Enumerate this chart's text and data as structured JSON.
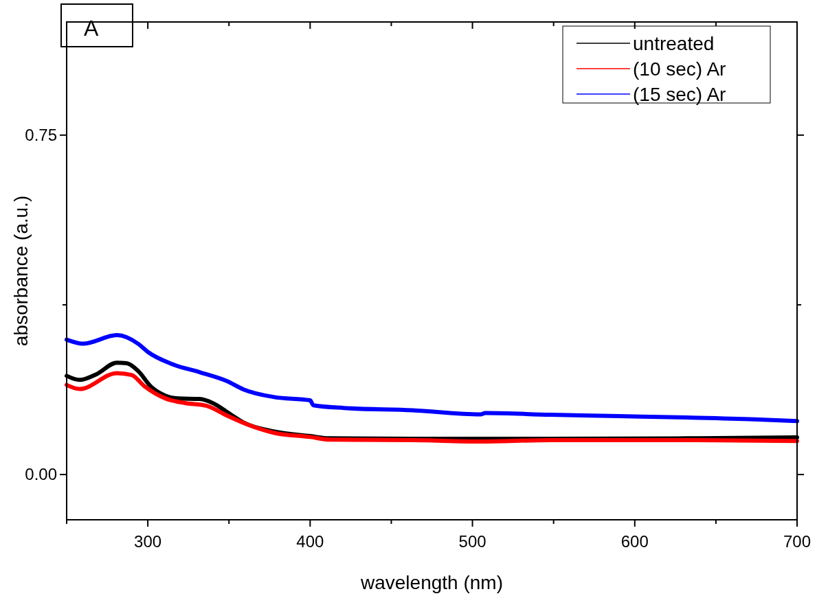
{
  "chart_data": {
    "type": "line",
    "xlabel": "wavelength (nm)",
    "ylabel": "absorbance (a.u.)",
    "annotations": [
      "A"
    ],
    "xlim": [
      250,
      700
    ],
    "xticks": [
      {
        "value": 250,
        "label": null
      },
      300,
      {
        "value": 350,
        "label": null
      },
      400,
      {
        "value": 450,
        "label": null
      },
      500,
      {
        "value": 550,
        "label": null
      },
      600,
      {
        "value": 650,
        "label": null
      },
      700
    ],
    "ylim": [
      -0.1,
      1.0
    ],
    "yticks": [
      {
        "value": 0,
        "label": "0.00"
      },
      {
        "value": 0.375,
        "label": null
      },
      {
        "value": 0.75,
        "label": "0.75"
      }
    ],
    "legend": "top right",
    "grid": false,
    "line_style": "solid",
    "series": [
      {
        "name": "untreated",
        "color": "#000000",
        "x": [
          250,
          258,
          268,
          281,
          287,
          294,
          302,
          311,
          319,
          332,
          340,
          351,
          359,
          378,
          400,
          412,
          463,
          548,
          632,
          700
        ],
        "values": [
          0.218,
          0.209,
          0.221,
          0.247,
          0.246,
          0.229,
          0.194,
          0.174,
          0.168,
          0.167,
          0.158,
          0.133,
          0.115,
          0.095,
          0.085,
          0.08,
          0.079,
          0.079,
          0.08,
          0.082
        ]
      },
      {
        "name": "(10 sec) Ar",
        "color": "#ff0000",
        "x": [
          250,
          258,
          281,
          290,
          298,
          311,
          323,
          336,
          349,
          359,
          378,
          400,
          412,
          463,
          505,
          548,
          632,
          700
        ],
        "values": [
          0.198,
          0.189,
          0.224,
          0.22,
          0.195,
          0.168,
          0.158,
          0.152,
          0.13,
          0.114,
          0.092,
          0.083,
          0.077,
          0.076,
          0.073,
          0.076,
          0.076,
          0.074
        ]
      },
      {
        "name": "(15 sec) Ar",
        "color": "#0000ff",
        "x": [
          250,
          260,
          281,
          294,
          300,
          315,
          332,
          349,
          359,
          378,
          400,
          402,
          421,
          463,
          505,
          508,
          548,
          590,
          632,
          674,
          700
        ],
        "values": [
          0.298,
          0.289,
          0.308,
          0.289,
          0.271,
          0.244,
          0.226,
          0.206,
          0.188,
          0.171,
          0.164,
          0.153,
          0.147,
          0.142,
          0.133,
          0.136,
          0.132,
          0.129,
          0.126,
          0.122,
          0.118
        ]
      }
    ]
  }
}
